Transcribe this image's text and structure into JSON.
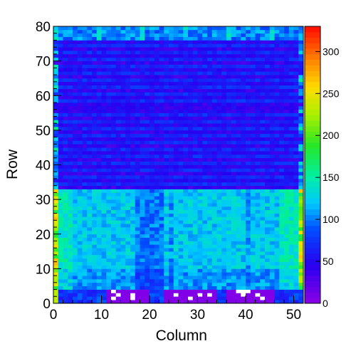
{
  "chart_data": {
    "type": "heatmap",
    "title": "",
    "xlabel": "Column",
    "ylabel": "Row",
    "xlim": [
      0,
      52
    ],
    "ylim": [
      0,
      80
    ],
    "nx": 52,
    "ny": 80,
    "zlim": [
      0,
      330
    ],
    "x_ticks": [
      "0",
      "10",
      "20",
      "30",
      "40",
      "50"
    ],
    "y_ticks": [
      "0",
      "10",
      "20",
      "30",
      "40",
      "50",
      "60",
      "70",
      "80"
    ],
    "z_ticks": [
      "0",
      "50",
      "100",
      "150",
      "200",
      "250",
      "300"
    ],
    "palette": "rainbow (violet-blue-cyan-green-yellow-red)",
    "regions": [
      {
        "rows": [
          76,
          79
        ],
        "level": 95,
        "note": "top rows, blue/cyan"
      },
      {
        "rows": [
          33,
          75
        ],
        "level": 60,
        "note": "alternating blue stripes with violet rows"
      },
      {
        "rows": [
          4,
          32
        ],
        "level": 115,
        "note": "cyan/green band, edges green"
      },
      {
        "rows": [
          0,
          3
        ],
        "level": 60,
        "note": "bottom rows, blue"
      },
      {
        "rows": [
          0,
          3
        ],
        "cols": [
          11,
          19
        ],
        "level": 0,
        "note": "empty box with scattered cells"
      },
      {
        "rows": [
          0,
          3
        ],
        "cols": [
          23,
          33
        ],
        "level": 0,
        "note": "empty box with scattered cells"
      },
      {
        "rows": [
          0,
          3
        ],
        "cols": [
          36,
          45
        ],
        "level": 0,
        "note": "empty box with scattered cells"
      }
    ]
  }
}
